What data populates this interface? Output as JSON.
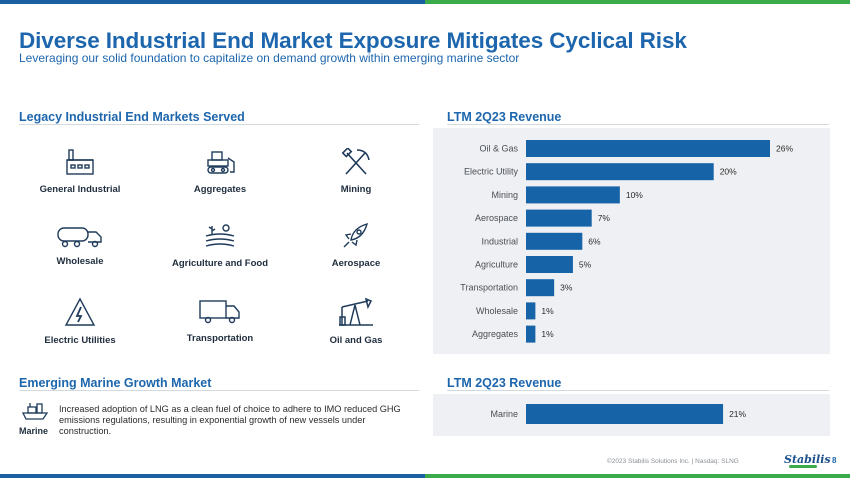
{
  "header": {
    "title": "Diverse Industrial End Market Exposure Mitigates Cyclical Risk",
    "subtitle": "Leveraging our solid foundation to capitalize on demand growth within emerging marine sector"
  },
  "legacy": {
    "heading": "Legacy Industrial End Markets Served",
    "items": [
      {
        "label": "General Industrial",
        "icon": "factory-icon"
      },
      {
        "label": "Aggregates",
        "icon": "bulldozer-icon"
      },
      {
        "label": "Mining",
        "icon": "pickaxe-hammer-icon"
      },
      {
        "label": "Wholesale",
        "icon": "tanker-truck-icon"
      },
      {
        "label": "Agriculture and Food",
        "icon": "crop-field-icon"
      },
      {
        "label": "Aerospace",
        "icon": "rocket-icon"
      },
      {
        "label": "Electric Utilities",
        "icon": "high-voltage-icon"
      },
      {
        "label": "Transportation",
        "icon": "box-truck-icon"
      },
      {
        "label": "Oil and Gas",
        "icon": "pumpjack-icon"
      }
    ]
  },
  "marine": {
    "heading": "Emerging Marine Growth Market",
    "label": "Marine",
    "icon": "ship-icon",
    "text": "Increased adoption of LNG as a clean fuel of choice to adhere to IMO reduced GHG emissions regulations, resulting in exponential growth of new vessels under construction."
  },
  "colors": {
    "accent": "#1d66ad",
    "bar": "#1763a8",
    "panel": "#eef0f3",
    "green": "#3aaa4a"
  },
  "chart_data": [
    {
      "type": "bar",
      "orientation": "horizontal",
      "title": "LTM 2Q23 Revenue",
      "categories": [
        "Oil & Gas",
        "Electric Utility",
        "Mining",
        "Aerospace",
        "Industrial",
        "Agriculture",
        "Transportation",
        "Wholesale",
        "Aggregates"
      ],
      "values": [
        26,
        20,
        10,
        7,
        6,
        5,
        3,
        1,
        1
      ],
      "value_suffix": "%",
      "xlim": [
        0,
        26
      ]
    },
    {
      "type": "bar",
      "orientation": "horizontal",
      "title": "LTM 2Q23 Revenue",
      "categories": [
        "Marine"
      ],
      "values": [
        21
      ],
      "value_suffix": "%",
      "xlim": [
        0,
        26
      ]
    }
  ],
  "footer": {
    "copyright": "©2023 Stabilis Solutions Inc. | Nasdaq: SLNG",
    "logo_text": "Stabilis",
    "page_number": "8"
  }
}
